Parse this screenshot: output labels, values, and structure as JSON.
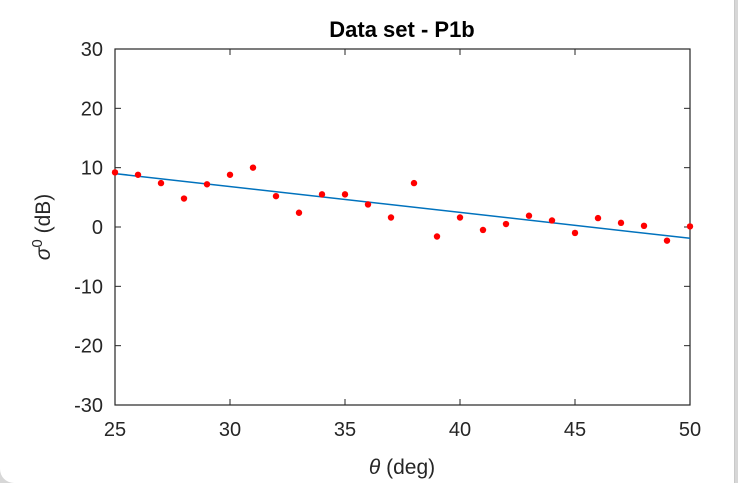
{
  "chart_data": {
    "type": "scatter",
    "title": "Data set - P1b",
    "xlabel": {
      "symbol": "θ",
      "text": " (deg)"
    },
    "ylabel": {
      "symbol": "σ",
      "superscript": "0",
      "text": " (dB)"
    },
    "xlim": [
      25,
      50
    ],
    "ylim": [
      -30,
      30
    ],
    "xticks": [
      25,
      30,
      35,
      40,
      45,
      50
    ],
    "yticks": [
      -30,
      -20,
      -10,
      0,
      10,
      20,
      30
    ],
    "grid": false,
    "legend": "none",
    "series": [
      {
        "marker": "dot",
        "color": "#ff0000",
        "x": [
          25,
          26,
          27,
          28,
          29,
          30,
          31,
          32,
          33,
          34,
          35,
          36,
          37,
          38,
          39,
          40,
          41,
          42,
          43,
          44,
          45,
          46,
          47,
          48,
          49,
          50
        ],
        "y": [
          9.2,
          8.8,
          7.4,
          4.8,
          7.2,
          8.8,
          10.0,
          5.2,
          2.4,
          5.5,
          5.5,
          3.8,
          1.6,
          7.4,
          -1.6,
          1.6,
          -0.5,
          0.5,
          1.9,
          1.1,
          -1.0,
          1.5,
          0.7,
          0.2,
          -2.3,
          0.1
        ]
      },
      {
        "type": "line",
        "color": "#0072bd",
        "x": [
          25,
          50
        ],
        "y": [
          9.0,
          -1.9
        ]
      }
    ]
  }
}
